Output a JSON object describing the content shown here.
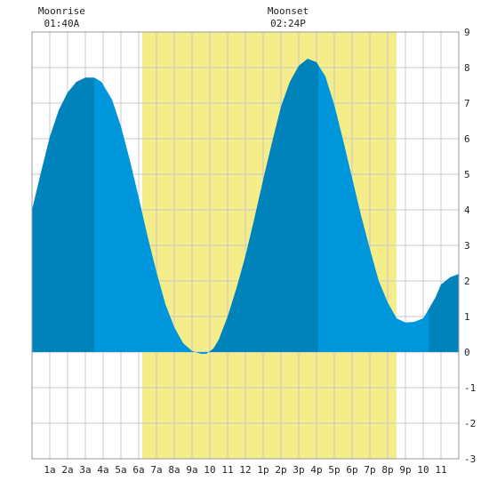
{
  "chart_data": {
    "type": "area",
    "title": "",
    "xlabel": "",
    "ylabel": "",
    "ylim": [
      -3,
      9
    ],
    "xlim": [
      0,
      24
    ],
    "y_ticks": [
      "-3",
      "-2",
      "-1",
      "0",
      "1",
      "2",
      "3",
      "4",
      "5",
      "6",
      "7",
      "8",
      "9"
    ],
    "x_tick_labels": [
      "1a",
      "2a",
      "3a",
      "4a",
      "5a",
      "6a",
      "7a",
      "8a",
      "9a",
      "10",
      "11",
      "12",
      "1p",
      "2p",
      "3p",
      "4p",
      "5p",
      "6p",
      "7p",
      "8p",
      "9p",
      "10",
      "11"
    ],
    "x_tick_hours": [
      1,
      2,
      3,
      4,
      5,
      6,
      7,
      8,
      9,
      10,
      11,
      12,
      13,
      14,
      15,
      16,
      17,
      18,
      19,
      20,
      21,
      22,
      23
    ],
    "grid": true,
    "daylight": {
      "start_hour": 6.2,
      "end_hour": 20.5,
      "color": "#f5ec8a"
    },
    "series": [
      {
        "hours": [
          0,
          0.5,
          1,
          1.5,
          2,
          2.5,
          3,
          3.5,
          3.9,
          4.5,
          5,
          5.5,
          6,
          6.5,
          7,
          7.5,
          8,
          8.5,
          9,
          9.5,
          9.8,
          10.2,
          10.5,
          11,
          11.5,
          12,
          12.5,
          13,
          13.5,
          14,
          14.5,
          15,
          15.5,
          16,
          16.5,
          17,
          17.5,
          18,
          18.5,
          19,
          19.5,
          20,
          20.5,
          21,
          21.5,
          22,
          22.3,
          22.7,
          23,
          23.5,
          24
        ],
        "values": [
          4.0,
          5.05,
          6.05,
          6.8,
          7.3,
          7.6,
          7.72,
          7.72,
          7.6,
          7.1,
          6.35,
          5.4,
          4.35,
          3.25,
          2.25,
          1.35,
          0.7,
          0.25,
          0.03,
          -0.05,
          -0.05,
          0.1,
          0.35,
          1.0,
          1.8,
          2.7,
          3.75,
          4.85,
          5.9,
          6.9,
          7.6,
          8.05,
          8.25,
          8.15,
          7.75,
          6.95,
          5.95,
          4.9,
          3.85,
          2.9,
          2.0,
          1.4,
          0.95,
          0.83,
          0.85,
          0.95,
          1.2,
          1.55,
          1.9,
          2.1,
          2.2
        ]
      }
    ],
    "shade_bands": [
      {
        "from_hour": 0,
        "to_hour": 3.5,
        "color": "#0083ba"
      },
      {
        "from_hour": 3.5,
        "to_hour": 10,
        "color": "#0096db"
      },
      {
        "from_hour": 10,
        "to_hour": 16.1,
        "color": "#0083ba"
      },
      {
        "from_hour": 16.1,
        "to_hour": 22.3,
        "color": "#0096db"
      },
      {
        "from_hour": 22.3,
        "to_hour": 24,
        "color": "#0083ba"
      }
    ],
    "annotations": [
      {
        "label": "Moonrise",
        "time": "01:40A",
        "hour": 1.67
      },
      {
        "label": "Moonset",
        "time": "02:24P",
        "hour": 14.4
      }
    ]
  }
}
